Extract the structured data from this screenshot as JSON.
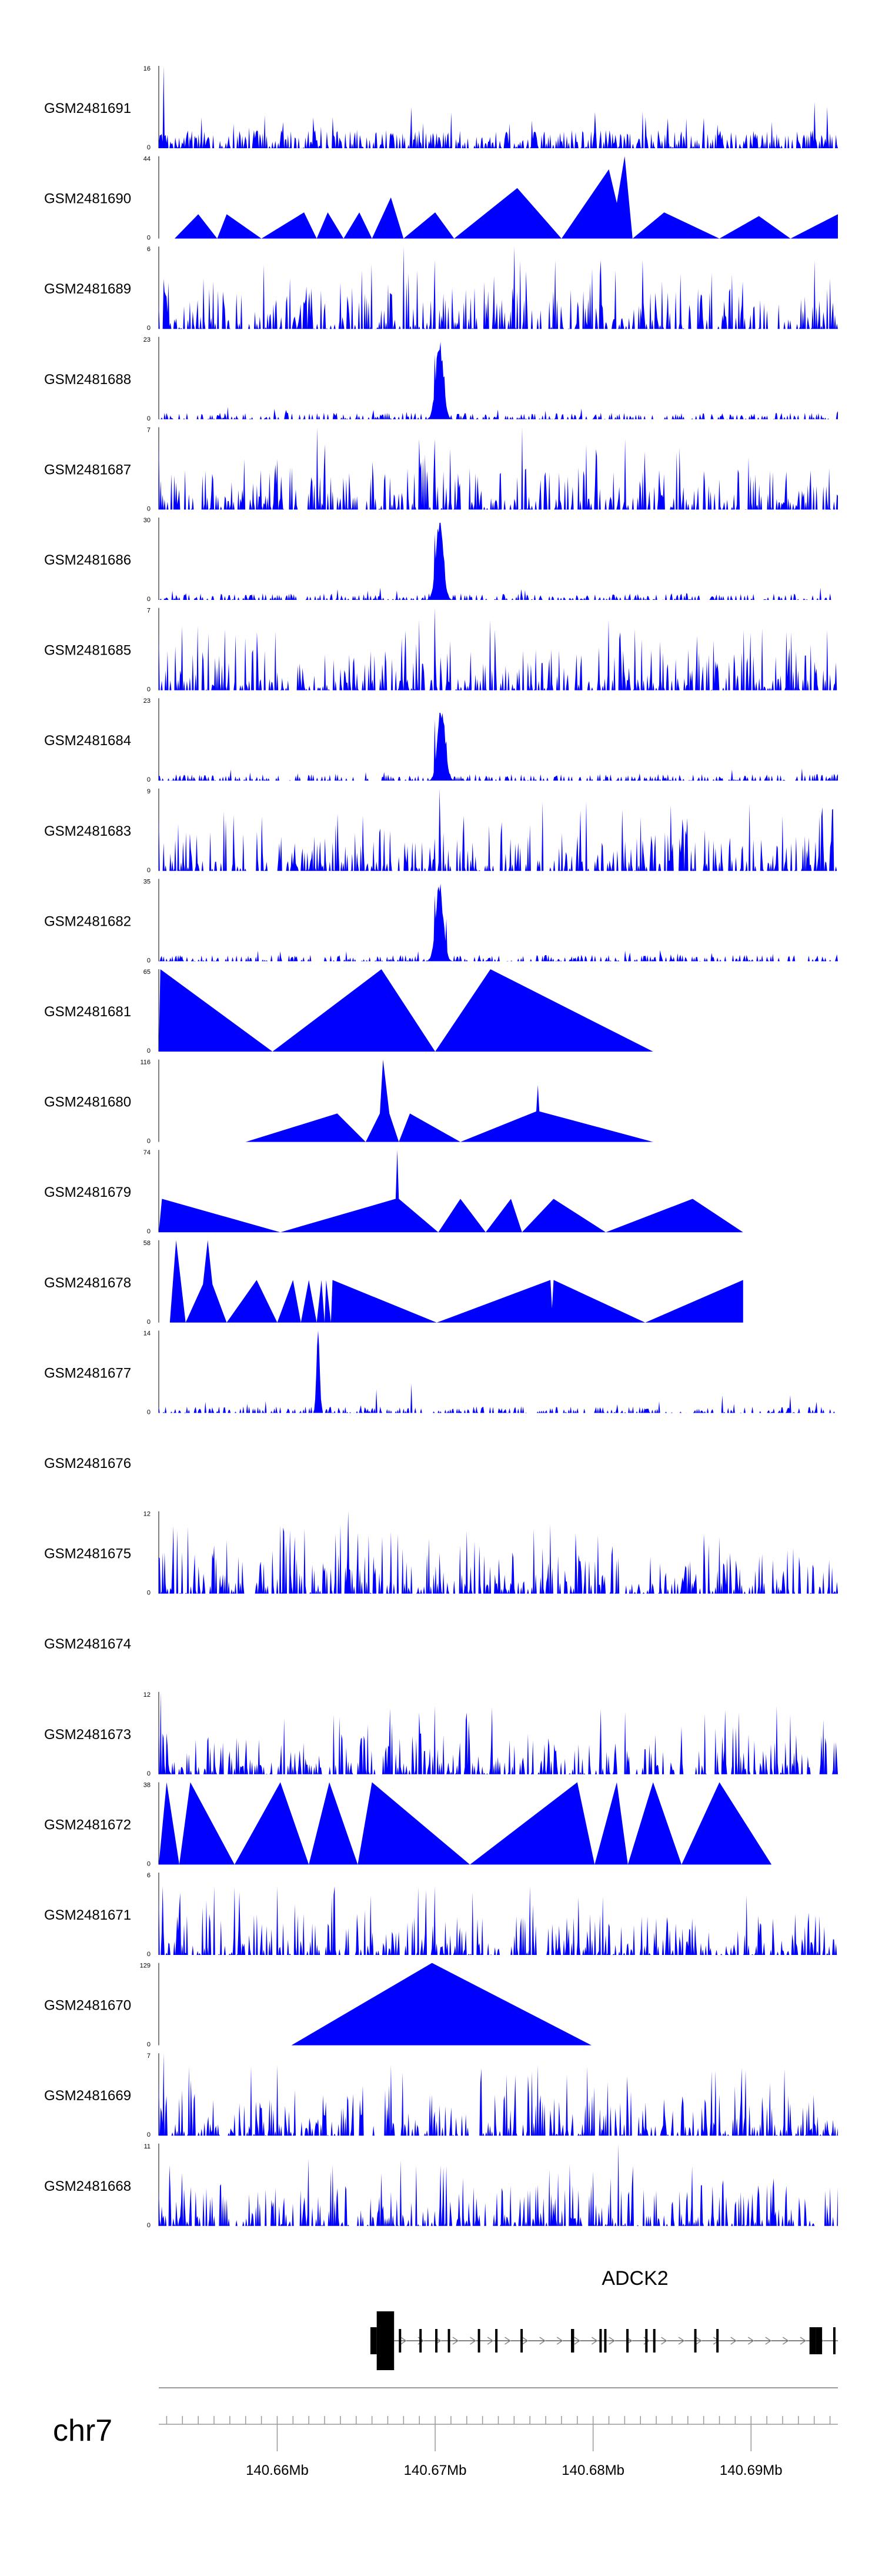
{
  "chart_data": {
    "type": "area",
    "chromosome": "chr7",
    "xlim_mb": [
      140.6525,
      140.6955
    ],
    "tracks": [
      {
        "name": "GSM2481691",
        "ymax": 16,
        "ymin": 0,
        "pattern": "dense",
        "seed": 11,
        "peaks": [
          [
            140.6528,
            16
          ],
          [
            140.6552,
            6
          ],
          [
            140.6623,
            6
          ],
          [
            140.6635,
            6
          ],
          [
            140.6685,
            8
          ],
          [
            140.671,
            7
          ],
          [
            140.694,
            9
          ],
          [
            140.6948,
            8
          ]
        ]
      },
      {
        "name": "GSM2481690",
        "ymax": 44,
        "ymin": 0,
        "pattern": "tri",
        "points": [
          [
            140.6535,
            0
          ],
          [
            140.655,
            13
          ],
          [
            140.6562,
            0
          ],
          [
            140.6568,
            13
          ],
          [
            140.659,
            0
          ],
          [
            140.6617,
            14
          ],
          [
            140.6625,
            0
          ],
          [
            140.6632,
            14
          ],
          [
            140.6642,
            0
          ],
          [
            140.6652,
            14
          ],
          [
            140.666,
            0
          ],
          [
            140.6672,
            22
          ],
          [
            140.668,
            0
          ],
          [
            140.67,
            14
          ],
          [
            140.6712,
            0
          ],
          [
            140.6752,
            27
          ],
          [
            140.678,
            0
          ],
          [
            140.681,
            37
          ],
          [
            140.6815,
            19
          ],
          [
            140.682,
            44
          ],
          [
            140.6825,
            0
          ],
          [
            140.6845,
            14
          ],
          [
            140.688,
            0
          ],
          [
            140.6905,
            12
          ],
          [
            140.6925,
            0
          ],
          [
            140.6955,
            13
          ]
        ]
      },
      {
        "name": "GSM2481689",
        "ymax": 6,
        "ymin": 0,
        "pattern": "sparse",
        "seed": 23,
        "peaks": [
          [
            140.668,
            6
          ],
          [
            140.67,
            5
          ],
          [
            140.675,
            6
          ],
          [
            140.6776,
            5
          ],
          [
            140.6805,
            5
          ],
          [
            140.694,
            5
          ]
        ]
      },
      {
        "name": "GSM2481688",
        "ymax": 23,
        "ymin": 0,
        "pattern": "peak",
        "seed": 31,
        "center": 140.6703,
        "peakH": 23,
        "peaks": [
          [
            140.67,
            18
          ],
          [
            140.6706,
            12
          ]
        ]
      },
      {
        "name": "GSM2481687",
        "ymax": 7,
        "ymin": 0,
        "pattern": "sparse",
        "seed": 41,
        "peaks": [
          [
            140.6625,
            7
          ],
          [
            140.669,
            6
          ],
          [
            140.67,
            6
          ],
          [
            140.6755,
            7
          ],
          [
            140.682,
            6
          ]
        ]
      },
      {
        "name": "GSM2481686",
        "ymax": 30,
        "ymin": 0,
        "pattern": "peak",
        "seed": 53,
        "center": 140.6703,
        "peakH": 30,
        "peaks": [
          [
            140.67,
            24
          ],
          [
            140.6706,
            14
          ]
        ]
      },
      {
        "name": "GSM2481685",
        "ymax": 7,
        "ymin": 0,
        "pattern": "sparse",
        "seed": 61,
        "peaks": [
          [
            140.669,
            6
          ],
          [
            140.67,
            7
          ],
          [
            140.6735,
            6
          ],
          [
            140.681,
            6
          ]
        ]
      },
      {
        "name": "GSM2481684",
        "ymax": 23,
        "ymin": 0,
        "pattern": "peak",
        "seed": 71,
        "center": 140.6704,
        "peakH": 23,
        "peaks": [
          [
            140.67,
            17
          ],
          [
            140.6707,
            11
          ]
        ]
      },
      {
        "name": "GSM2481683",
        "ymax": 9,
        "ymin": 0,
        "pattern": "sparse",
        "seed": 83,
        "peaks": [
          [
            140.6703,
            9
          ],
          [
            140.6718,
            6
          ],
          [
            140.676,
            5
          ],
          [
            140.692,
            6
          ]
        ]
      },
      {
        "name": "GSM2481682",
        "ymax": 35,
        "ymin": 0,
        "pattern": "peak",
        "seed": 97,
        "center": 140.6703,
        "peakH": 35,
        "peaks": [
          [
            140.67,
            28
          ],
          [
            140.6707,
            18
          ]
        ]
      },
      {
        "name": "GSM2481681",
        "ymax": 65,
        "ymin": 0,
        "pattern": "tri",
        "points": [
          [
            140.6525,
            0
          ],
          [
            140.6526,
            65
          ],
          [
            140.6597,
            0
          ],
          [
            140.6666,
            65
          ],
          [
            140.67,
            0
          ],
          [
            140.6735,
            65
          ],
          [
            140.6838,
            0
          ]
        ]
      },
      {
        "name": "GSM2481680",
        "ymax": 116,
        "ymin": 0,
        "pattern": "tri",
        "points": [
          [
            140.658,
            0
          ],
          [
            140.6638,
            40
          ],
          [
            140.6656,
            0
          ],
          [
            140.6665,
            40
          ],
          [
            140.6667,
            116
          ],
          [
            140.6671,
            40
          ],
          [
            140.6677,
            0
          ],
          [
            140.6684,
            40
          ],
          [
            140.6716,
            0
          ],
          [
            140.6764,
            43
          ],
          [
            140.6765,
            80
          ],
          [
            140.6766,
            43
          ],
          [
            140.6838,
            0
          ]
        ]
      },
      {
        "name": "GSM2481679",
        "ymax": 74,
        "ymin": 0,
        "pattern": "tri",
        "points": [
          [
            140.6525,
            0
          ],
          [
            140.6527,
            30
          ],
          [
            140.6602,
            0
          ],
          [
            140.6675,
            30
          ],
          [
            140.6676,
            74
          ],
          [
            140.6677,
            30
          ],
          [
            140.6702,
            0
          ],
          [
            140.6716,
            30
          ],
          [
            140.6732,
            0
          ],
          [
            140.6748,
            30
          ],
          [
            140.6755,
            0
          ],
          [
            140.6775,
            30
          ],
          [
            140.6808,
            0
          ],
          [
            140.6863,
            30
          ],
          [
            140.6895,
            0
          ]
        ]
      },
      {
        "name": "GSM2481678",
        "ymax": 58,
        "ymin": 0,
        "pattern": "tri",
        "points": [
          [
            140.6532,
            0
          ],
          [
            140.6536,
            58
          ],
          [
            140.6542,
            0
          ],
          [
            140.6553,
            27
          ],
          [
            140.6556,
            58
          ],
          [
            140.6559,
            27
          ],
          [
            140.6568,
            0
          ],
          [
            140.6587,
            30
          ],
          [
            140.66,
            0
          ],
          [
            140.661,
            30
          ],
          [
            140.6615,
            0
          ],
          [
            140.662,
            30
          ],
          [
            140.6625,
            0
          ],
          [
            140.6628,
            30
          ],
          [
            140.663,
            0
          ],
          [
            140.6631,
            30
          ],
          [
            140.6634,
            0
          ],
          [
            140.6635,
            30
          ],
          [
            140.6701,
            0
          ],
          [
            140.6773,
            30
          ],
          [
            140.6774,
            10
          ],
          [
            140.6775,
            30
          ],
          [
            140.6833,
            0
          ],
          [
            140.6895,
            30
          ],
          [
            140.6895,
            0
          ]
        ]
      },
      {
        "name": "GSM2481677",
        "ymax": 14,
        "ymin": 0,
        "pattern": "spike",
        "seed": 107,
        "center": 140.6626,
        "peakH": 14,
        "peaks": [
          [
            140.6663,
            4
          ],
          [
            140.6685,
            5
          ],
          [
            140.6882,
            3
          ],
          [
            140.6925,
            3
          ]
        ]
      },
      {
        "name": "GSM2481676",
        "ymax": null,
        "ymin": null,
        "pattern": "empty"
      },
      {
        "name": "GSM2481675",
        "ymax": 12,
        "ymin": 0,
        "pattern": "sparse",
        "seed": 113,
        "peaks": [
          [
            140.656,
            7
          ],
          [
            140.6602,
            10
          ],
          [
            140.664,
            10
          ],
          [
            140.6645,
            12
          ],
          [
            140.6672,
            9
          ],
          [
            140.6696,
            8
          ],
          [
            140.6716,
            7
          ]
        ]
      },
      {
        "name": "GSM2481674",
        "ymax": null,
        "ymin": null,
        "pattern": "empty"
      },
      {
        "name": "GSM2481673",
        "ymax": 12,
        "ymin": 0,
        "pattern": "sparse",
        "seed": 127,
        "peaks": [
          [
            140.6526,
            12
          ],
          [
            140.653,
            6
          ],
          [
            140.669,
            9
          ],
          [
            140.67,
            10
          ],
          [
            140.672,
            9
          ],
          [
            140.6892,
            9
          ]
        ]
      },
      {
        "name": "GSM2481672",
        "ymax": 38,
        "ymin": 0,
        "pattern": "tri",
        "points": [
          [
            140.6525,
            0
          ],
          [
            140.653,
            38
          ],
          [
            140.6538,
            0
          ],
          [
            140.6545,
            38
          ],
          [
            140.6573,
            0
          ],
          [
            140.6602,
            38
          ],
          [
            140.662,
            0
          ],
          [
            140.6633,
            38
          ],
          [
            140.6651,
            0
          ],
          [
            140.666,
            38
          ],
          [
            140.6722,
            0
          ],
          [
            140.679,
            38
          ],
          [
            140.6801,
            0
          ],
          [
            140.6815,
            38
          ],
          [
            140.6822,
            0
          ],
          [
            140.6838,
            38
          ],
          [
            140.6856,
            0
          ],
          [
            140.688,
            38
          ],
          [
            140.6913,
            0
          ]
        ]
      },
      {
        "name": "GSM2481671",
        "ymax": 6,
        "ymin": 0,
        "pattern": "sparse",
        "seed": 139,
        "peaks": [
          [
            140.656,
            5
          ],
          [
            140.66,
            5
          ],
          [
            140.67,
            5
          ],
          [
            140.676,
            5
          ]
        ]
      },
      {
        "name": "GSM2481670",
        "ymax": 129,
        "ymin": 0,
        "pattern": "tri",
        "points": [
          [
            140.6609,
            0
          ],
          [
            140.6698,
            129
          ],
          [
            140.6799,
            0
          ]
        ]
      },
      {
        "name": "GSM2481669",
        "ymax": 7,
        "ymin": 0,
        "pattern": "sparse",
        "seed": 149,
        "peaks": [
          [
            140.6528,
            7
          ],
          [
            140.66,
            6
          ],
          [
            140.6672,
            6
          ],
          [
            140.6765,
            6
          ]
        ]
      },
      {
        "name": "GSM2481668",
        "ymax": 11,
        "ymin": 0,
        "pattern": "sparse",
        "seed": 157,
        "peaks": [
          [
            140.662,
            9
          ],
          [
            140.6688,
            8
          ],
          [
            140.6707,
            8
          ],
          [
            140.6816,
            11
          ],
          [
            140.6825,
            8
          ],
          [
            140.6863,
            8
          ]
        ]
      }
    ],
    "gene": {
      "name": "ADCK2",
      "strand": "+",
      "start_mb": 140.6674,
      "end_mb": 140.6955,
      "exons_mb": [
        [
          140.6659,
          140.6663
        ],
        [
          140.6663,
          140.6674
        ],
        [
          140.6677,
          140.6678
        ],
        [
          140.669,
          140.6691
        ],
        [
          140.67,
          140.6701
        ],
        [
          140.6708,
          140.6709
        ],
        [
          140.6727,
          140.6728
        ],
        [
          140.6738,
          140.6739
        ],
        [
          140.6754,
          140.6755
        ],
        [
          140.6786,
          140.6788
        ],
        [
          140.6804,
          140.6805
        ],
        [
          140.6807,
          140.6808
        ],
        [
          140.6821,
          140.6822
        ],
        [
          140.6833,
          140.6834
        ],
        [
          140.6838,
          140.6839
        ],
        [
          140.6864,
          140.6865
        ],
        [
          140.6878,
          140.6879
        ],
        [
          140.6937,
          140.6941
        ],
        [
          140.6941,
          140.6945
        ],
        [
          140.6952,
          140.6953
        ]
      ]
    },
    "axis": {
      "ticks_mb": [
        140.66,
        140.67,
        140.68,
        140.69
      ],
      "tick_labels": [
        "140.66Mb",
        "140.67Mb",
        "140.68Mb",
        "140.69Mb"
      ],
      "minor_step_mb": 0.001
    }
  }
}
